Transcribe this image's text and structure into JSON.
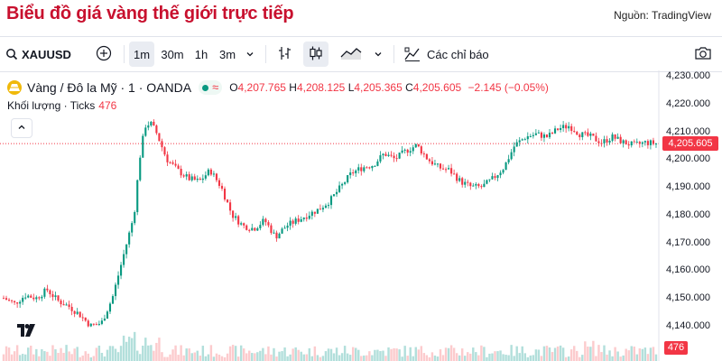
{
  "page": {
    "title": "Biểu đồ giá vàng thế giới trực tiếp",
    "source": "Nguồn: TradingView"
  },
  "toolbar": {
    "symbol": "XAUUSD",
    "intervals": [
      "1m",
      "30m",
      "1h",
      "3m"
    ],
    "active_interval": "1m",
    "indicators_label": "Các chỉ báo",
    "icons": [
      "search-icon",
      "add-compare-icon",
      "chevron-down-icon",
      "bar-style-icon",
      "candle-style-icon",
      "line-style-icon",
      "indicators-icon",
      "camera-icon"
    ]
  },
  "legend": {
    "symbol_title": "Vàng / Đô la Mỹ · 1 · OANDA",
    "market_status_icon": "market-open-dot",
    "ohlc": {
      "open_key": "O",
      "open": "4,207.765",
      "high_key": "H",
      "high": "4,208.125",
      "low_key": "L",
      "low": "4,205.365",
      "close_key": "C",
      "close": "4,205.605",
      "change": "−2.145 (−0.05%)"
    },
    "volume_label": "Khối lượng · Ticks",
    "volume_value": "476"
  },
  "axis": {
    "price_ticks": [
      "4,230.000",
      "4,220.000",
      "4,210.000",
      "4,200.000",
      "4,190.000",
      "4,180.000",
      "4,170.000",
      "4,160.000",
      "4,150.000",
      "4,140.000"
    ],
    "current_price": "4,205.605",
    "current_volume": "476"
  },
  "colors": {
    "title_red": "#c8102e",
    "up": "#089981",
    "down": "#f23645",
    "volume_bar": "#b2dfdb"
  },
  "chart_data": {
    "type": "line",
    "description_series": "XAUUSD 1-minute closing prices (approximate)",
    "x": [
      0,
      12,
      24,
      36,
      48,
      60,
      72,
      84,
      96,
      108,
      120,
      132,
      144,
      150,
      156,
      162,
      168,
      174,
      180,
      192,
      204,
      216,
      228,
      240,
      252,
      264,
      276,
      288,
      300,
      312,
      324,
      336,
      348,
      360,
      372,
      384,
      396,
      408,
      420,
      432,
      444,
      456,
      468,
      480,
      492,
      504,
      516,
      528,
      540,
      552,
      564,
      576,
      588,
      600,
      612,
      624,
      636,
      648,
      660,
      672,
      684,
      696,
      708,
      720
    ],
    "values": [
      4150,
      4148,
      4151,
      4150,
      4153,
      4149,
      4147,
      4144,
      4140,
      4141,
      4150,
      4165,
      4180,
      4200,
      4212,
      4213,
      4210,
      4205,
      4200,
      4196,
      4193,
      4192,
      4196,
      4190,
      4180,
      4176,
      4175,
      4178,
      4172,
      4176,
      4178,
      4180,
      4182,
      4185,
      4190,
      4195,
      4197,
      4198,
      4202,
      4200,
      4203,
      4205,
      4200,
      4197,
      4196,
      4192,
      4190,
      4190,
      4193,
      4197,
      4205,
      4208,
      4209,
      4208,
      4211,
      4212,
      4209,
      4208,
      4206,
      4208,
      4206,
      4205,
      4206,
      4205.605
    ],
    "ylim": [
      4135,
      4232
    ],
    "yticks": [
      4230,
      4220,
      4210,
      4200,
      4190,
      4180,
      4170,
      4160,
      4150,
      4140
    ]
  }
}
